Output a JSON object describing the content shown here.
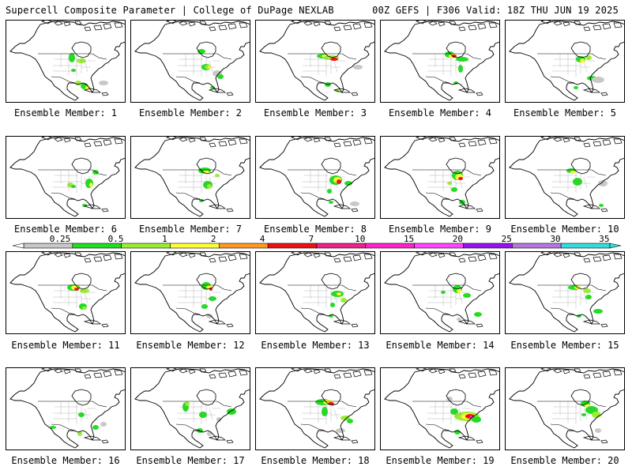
{
  "header": {
    "title_left": "Supercell Composite Parameter | College of DuPage NEXLAB",
    "title_right": "00Z GEFS | F306 Valid: 18Z THU JUN 19 2025"
  },
  "members": [
    {
      "label": "Ensemble Member: 1"
    },
    {
      "label": "Ensemble Member: 2"
    },
    {
      "label": "Ensemble Member: 3"
    },
    {
      "label": "Ensemble Member: 4"
    },
    {
      "label": "Ensemble Member: 5"
    },
    {
      "label": "Ensemble Member: 6"
    },
    {
      "label": "Ensemble Member: 7"
    },
    {
      "label": "Ensemble Member: 8"
    },
    {
      "label": "Ensemble Member: 9"
    },
    {
      "label": "Ensemble Member: 10"
    },
    {
      "label": "Ensemble Member: 11"
    },
    {
      "label": "Ensemble Member: 12"
    },
    {
      "label": "Ensemble Member: 13"
    },
    {
      "label": "Ensemble Member: 14"
    },
    {
      "label": "Ensemble Member: 15"
    },
    {
      "label": "Ensemble Member: 16"
    },
    {
      "label": "Ensemble Member: 17"
    },
    {
      "label": "Ensemble Member: 18"
    },
    {
      "label": "Ensemble Member: 19"
    },
    {
      "label": "Ensemble Member: 20"
    }
  ],
  "colorbar": {
    "levels": [
      "0.25",
      "0.5",
      "1",
      "2",
      "4",
      "7",
      "10",
      "15",
      "20",
      "25",
      "30",
      "35"
    ],
    "colors": [
      "#c8c8c8",
      "#22dd22",
      "#99ee33",
      "#ffff33",
      "#ff9922",
      "#ee1111",
      "#ee2288",
      "#ff22cc",
      "#ff44ff",
      "#9911ee",
      "#b377dd",
      "#33dddd"
    ]
  }
}
